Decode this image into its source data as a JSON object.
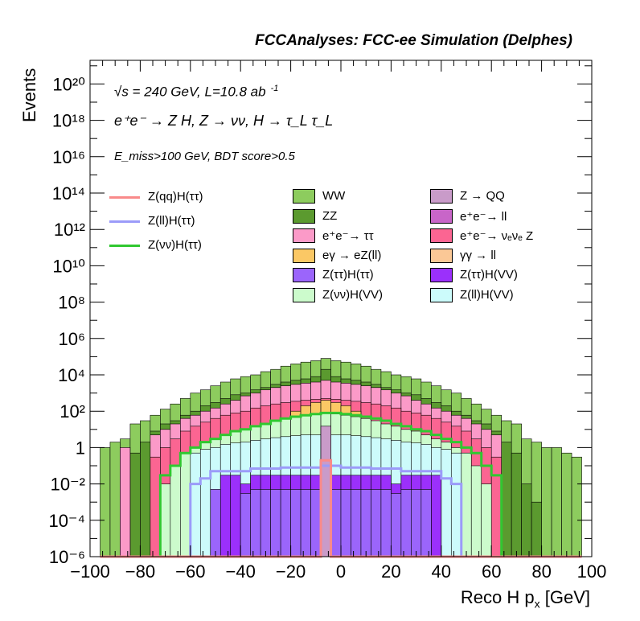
{
  "title": "FCCAnalyses: FCC-ee Simulation (Delphes)",
  "annotations": {
    "line1": "√s = 240 GeV, L=10.8 ab",
    "line1_sup": "-1",
    "line2": "e⁺e⁻ → Z H, Z → νν, H → τ_L τ_L",
    "line3": "E_miss>100 GeV, BDT score>0.5"
  },
  "chart_data": {
    "type": "bar",
    "xlabel": "Reco H p",
    "xlabel_sub": "x",
    "xlabel_unit": " [GeV]",
    "ylabel": "Events",
    "yscale": "log",
    "xlim": [
      -100,
      100
    ],
    "ylim": [
      1e-06,
      2e+21
    ],
    "x_ticks": [
      "−100",
      "−80",
      "−60",
      "−40",
      "−20",
      "0",
      "20",
      "40",
      "60",
      "80",
      "100"
    ],
    "y_ticks": [
      "10⁻⁶",
      "10⁻⁴",
      "10⁻²",
      "1",
      "10²",
      "10⁴",
      "10⁶",
      "10⁸",
      "10¹⁰",
      "10¹²",
      "10¹⁴",
      "10¹⁶",
      "10¹⁸",
      "10²⁰"
    ],
    "bin_width": 4,
    "bin_edges_start": -96,
    "stack_legend": [
      {
        "name": "WW",
        "color": "#8dcc5e"
      },
      {
        "name": "Z → QQ",
        "color": "#c99bc9"
      },
      {
        "name": "ZZ",
        "color": "#5b9a2f"
      },
      {
        "name": "e⁺e⁻→ ll",
        "color": "#c865c8"
      },
      {
        "name": "e⁺e⁻→ ττ",
        "color": "#fb9ac8"
      },
      {
        "name": "e⁺e⁻→ νₑνₑ Z",
        "color": "#fb6592"
      },
      {
        "name": "eγ → eZ(ll)",
        "color": "#fbc865"
      },
      {
        "name": "γγ → ll",
        "color": "#fbc896"
      },
      {
        "name": "Z(ττ)H(ττ)",
        "color": "#9b65fb"
      },
      {
        "name": "Z(ττ)H(VV)",
        "color": "#9b30fb"
      },
      {
        "name": "Z(νν)H(VV)",
        "color": "#ccfbcc"
      },
      {
        "name": "Z(ll)H(VV)",
        "color": "#ccfbfb"
      }
    ],
    "line_legend": [
      {
        "name": "Z(qq)H(ττ)",
        "color": "#f98a8a"
      },
      {
        "name": "Z(ll)H(ττ)",
        "color": "#9b9bf9"
      },
      {
        "name": "Z(νν)H(ττ)",
        "color": "#30c830"
      }
    ],
    "series": [
      {
        "name": "WW",
        "color": "#8dcc5e",
        "values": [
          1,
          2,
          3,
          20,
          30,
          60,
          130,
          250,
          500,
          1000,
          1500,
          2500,
          4000,
          6000,
          8000,
          10000,
          15000,
          20000,
          30000,
          40000,
          50000,
          60000,
          80000,
          60000,
          50000,
          40000,
          30000,
          20000,
          15000,
          10000,
          8000,
          6000,
          4000,
          2500,
          1500,
          1000,
          500,
          250,
          130,
          60,
          30,
          20,
          3,
          2,
          1,
          1,
          0.5,
          0.3
        ]
      },
      {
        "name": "ZZ",
        "color": "#5b9a2f",
        "values": [
          1e-06,
          1e-06,
          1e-06,
          0.5,
          2,
          8,
          20,
          30,
          60,
          100,
          200,
          300,
          500,
          800,
          1000,
          1500,
          2000,
          3000,
          4000,
          5000,
          6000,
          8000,
          20000,
          8000,
          6000,
          5000,
          4000,
          3000,
          2000,
          1500,
          1000,
          800,
          500,
          300,
          200,
          100,
          60,
          30,
          20,
          8,
          2,
          0.5,
          0.01,
          0.001,
          1e-06,
          1e-06,
          1e-06,
          1e-06
        ]
      },
      {
        "name": "e⁺e⁻→ ττ",
        "color": "#fb9ac8",
        "values": [
          1e-06,
          1e-06,
          1,
          1e-06,
          1e-06,
          5,
          10,
          20,
          40,
          60,
          100,
          150,
          250,
          400,
          700,
          1000,
          1500,
          2000,
          2500,
          3000,
          3500,
          4000,
          5000,
          4000,
          3500,
          3000,
          2500,
          2000,
          1500,
          1000,
          700,
          400,
          250,
          150,
          100,
          60,
          40,
          20,
          10,
          5,
          1e-06,
          1e-06,
          1e-06,
          1e-06,
          1e-06,
          1e-06,
          1e-06,
          1e-06
        ]
      },
      {
        "name": "e⁺e⁻→ νₑνₑ Z",
        "color": "#fb6592",
        "values": [
          1e-06,
          1e-06,
          1e-06,
          1e-06,
          1e-06,
          0.3,
          1,
          3,
          8,
          15,
          25,
          40,
          60,
          80,
          100,
          150,
          200,
          250,
          300,
          350,
          400,
          450,
          500,
          450,
          400,
          350,
          300,
          250,
          200,
          150,
          100,
          80,
          60,
          40,
          25,
          15,
          8,
          3,
          1,
          0.3,
          1e-06,
          1e-06,
          1e-06,
          1e-06,
          1e-06,
          1e-06,
          1e-06,
          1e-06
        ]
      },
      {
        "name": "eγ → eZ(ll)",
        "color": "#fbc865",
        "values": [
          1e-06,
          1e-06,
          1e-06,
          1e-06,
          1e-06,
          1e-06,
          1e-06,
          1e-06,
          1e-06,
          1e-06,
          1e-06,
          1e-06,
          1e-06,
          1e-06,
          1e-06,
          1e-06,
          1e-06,
          1e-06,
          1e-06,
          100,
          200,
          300,
          400,
          300,
          200,
          100,
          1e-06,
          1e-06,
          1e-06,
          1e-06,
          1e-06,
          1e-06,
          1e-06,
          1e-06,
          1e-06,
          1e-06,
          1e-06,
          1e-06,
          1e-06,
          1e-06,
          1e-06,
          1e-06,
          1e-06,
          1e-06,
          1e-06,
          1e-06,
          1e-06,
          1e-06
        ]
      },
      {
        "name": "Z(νν)H(VV)",
        "color": "#ccfbcc",
        "values": [
          1e-06,
          1e-06,
          1e-06,
          1e-06,
          1e-06,
          1e-06,
          0.01,
          0.1,
          0.5,
          1,
          2,
          3,
          5,
          8,
          10,
          15,
          20,
          30,
          40,
          50,
          60,
          70,
          80,
          70,
          60,
          50,
          40,
          30,
          20,
          15,
          10,
          8,
          5,
          3,
          2,
          1,
          0.5,
          0.1,
          0.01,
          1e-06,
          1e-06,
          1e-06,
          1e-06,
          1e-06,
          1e-06,
          1e-06,
          1e-06,
          1e-06
        ]
      },
      {
        "name": "Z(ll)H(VV)",
        "color": "#ccfbfb",
        "values": [
          1e-06,
          1e-06,
          1e-06,
          1e-06,
          1e-06,
          1e-06,
          1e-06,
          1e-06,
          1e-06,
          0.5,
          0.8,
          1,
          1.5,
          1.8,
          2,
          2.5,
          3,
          3.5,
          4,
          4.5,
          5,
          5,
          5,
          5,
          5,
          4.5,
          4,
          3.5,
          3,
          2.5,
          2,
          1.8,
          1.5,
          1,
          0.8,
          0.5,
          1e-06,
          1e-06,
          1e-06,
          1e-06,
          1e-06,
          1e-06,
          1e-06,
          1e-06,
          1e-06,
          1e-06,
          1e-06,
          1e-06
        ]
      },
      {
        "name": "Z(ττ)H(VV)",
        "color": "#9b30fb",
        "values": [
          1e-06,
          1e-06,
          1e-06,
          1e-06,
          1e-06,
          1e-06,
          1e-06,
          1e-06,
          1e-06,
          1e-06,
          1e-06,
          1e-06,
          0.03,
          0.03,
          0.01,
          0.03,
          0.03,
          0.03,
          0.03,
          0.03,
          0.03,
          0.03,
          0.03,
          0.03,
          0.03,
          0.03,
          0.03,
          0.03,
          0.03,
          0.01,
          0.03,
          0.03,
          0.03,
          0.03,
          1e-06,
          1e-06,
          1e-06,
          1e-06,
          1e-06,
          1e-06,
          1e-06,
          1e-06,
          1e-06,
          1e-06,
          1e-06,
          1e-06,
          1e-06,
          1e-06
        ]
      },
      {
        "name": "Z(ττ)H(ττ)",
        "color": "#9b65fb",
        "values": [
          1e-06,
          1e-06,
          1e-06,
          1e-06,
          1e-06,
          1e-06,
          1e-06,
          1e-06,
          1e-06,
          1e-06,
          1e-06,
          0.005,
          1e-06,
          1e-06,
          0.003,
          0.005,
          0.005,
          0.005,
          0.005,
          0.005,
          0.005,
          0.005,
          0.005,
          0.005,
          0.005,
          0.005,
          0.005,
          0.005,
          0.005,
          0.003,
          0.005,
          0.005,
          0.005,
          1e-06,
          1e-06,
          1e-06,
          1e-06,
          1e-06,
          1e-06,
          1e-06,
          1e-06,
          1e-06,
          1e-06,
          1e-06,
          1e-06,
          1e-06,
          1e-06,
          1e-06
        ]
      },
      {
        "name": "Z → QQ",
        "color": "#c99bc9",
        "values": [
          1e-06,
          1e-06,
          1e-06,
          1e-06,
          1e-06,
          1e-06,
          1e-06,
          1e-06,
          1e-06,
          1e-06,
          1e-06,
          1e-06,
          1e-06,
          1e-06,
          1e-06,
          1e-06,
          1e-06,
          1e-06,
          1e-06,
          1e-06,
          1e-06,
          1e-06,
          15,
          1e-06,
          1e-06,
          1e-06,
          1e-06,
          1e-06,
          1e-06,
          1e-06,
          1e-06,
          1e-06,
          1e-06,
          1e-06,
          1e-06,
          1e-06,
          1e-06,
          1e-06,
          1e-06,
          1e-06,
          1e-06,
          1e-06,
          1e-06,
          1e-06,
          1e-06,
          1e-06,
          1e-06,
          1e-06
        ]
      }
    ],
    "lines": [
      {
        "name": "Z(νν)H(ττ)",
        "color": "#30c830",
        "values": [
          1e-06,
          1e-06,
          1e-06,
          1e-06,
          1e-06,
          1e-06,
          0.03,
          0.1,
          0.5,
          1,
          2,
          3,
          5,
          8,
          10,
          15,
          20,
          30,
          40,
          50,
          60,
          70,
          80,
          80,
          70,
          60,
          50,
          40,
          30,
          20,
          15,
          10,
          8,
          5,
          3,
          2,
          1,
          0.5,
          0.1,
          0.03,
          1e-06,
          1e-06,
          1e-06,
          1e-06,
          1e-06,
          1e-06,
          1e-06,
          1e-06
        ]
      },
      {
        "name": "Z(ll)H(ττ)",
        "color": "#9b9bf9",
        "values": [
          1e-06,
          1e-06,
          1e-06,
          1e-06,
          1e-06,
          1e-06,
          1e-06,
          1e-06,
          1e-06,
          0.01,
          0.02,
          0.05,
          0.05,
          0.05,
          0.05,
          0.07,
          0.07,
          0.07,
          0.08,
          0.08,
          0.08,
          0.08,
          0.1,
          0.1,
          0.08,
          0.08,
          0.08,
          0.07,
          0.07,
          0.07,
          0.05,
          0.05,
          0.05,
          0.05,
          0.02,
          0.01,
          1e-06,
          1e-06,
          1e-06,
          1e-06,
          1e-06,
          1e-06,
          1e-06,
          1e-06,
          1e-06,
          1e-06,
          1e-06,
          1e-06
        ]
      },
      {
        "name": "Z(qq)H(ττ)",
        "color": "#f98a8a",
        "values": [
          1e-06,
          1e-06,
          1e-06,
          1e-06,
          1e-06,
          1e-06,
          1e-06,
          1e-06,
          1e-06,
          1e-06,
          1e-06,
          1e-06,
          1e-06,
          1e-06,
          1e-06,
          1e-06,
          1e-06,
          1e-06,
          1e-06,
          1e-06,
          1e-06,
          1e-06,
          0.2,
          1e-06,
          1e-06,
          1e-06,
          1e-06,
          1e-06,
          1e-06,
          1e-06,
          1e-06,
          1e-06,
          1e-06,
          1e-06,
          1e-06,
          1e-06,
          1e-06,
          1e-06,
          1e-06,
          1e-06,
          1e-06,
          1e-06,
          1e-06,
          1e-06,
          1e-06,
          1e-06,
          1e-06,
          1e-06
        ]
      }
    ]
  }
}
